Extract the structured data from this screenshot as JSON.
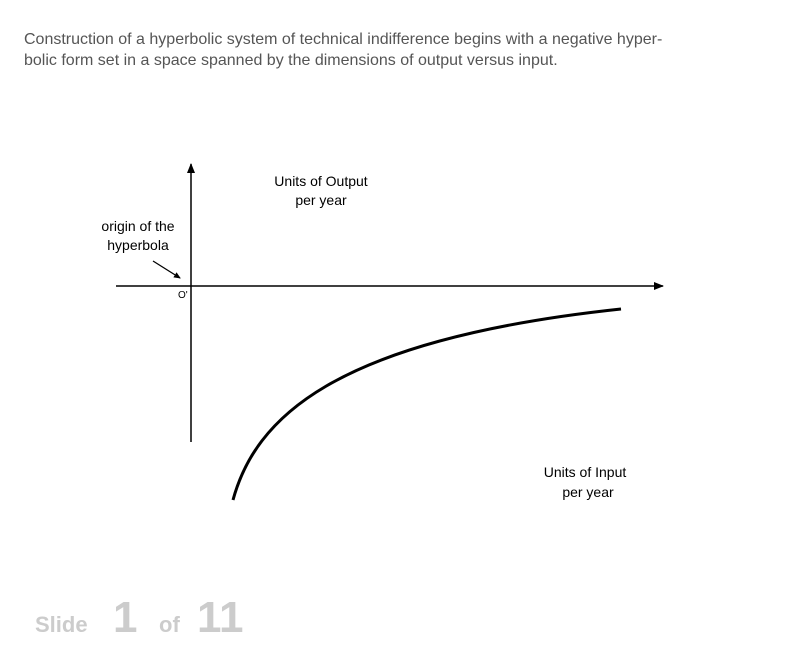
{
  "description": {
    "lines": [
      "Construction of a hyperbolic system of technical indifference begins with a negative hyper-",
      "bolic form set in a space spanned by the dimensions of output versus input."
    ]
  },
  "diagram": {
    "y_axis_label": [
      "Units of Output",
      "per year"
    ],
    "x_axis_label": [
      "Units of Input",
      "per year"
    ],
    "origin_note": [
      "origin of the",
      "hyperbola"
    ],
    "origin_mark": "O'"
  },
  "footer": {
    "slide_word": "Slide",
    "current": "1",
    "of_word": "of",
    "total": "11"
  }
}
